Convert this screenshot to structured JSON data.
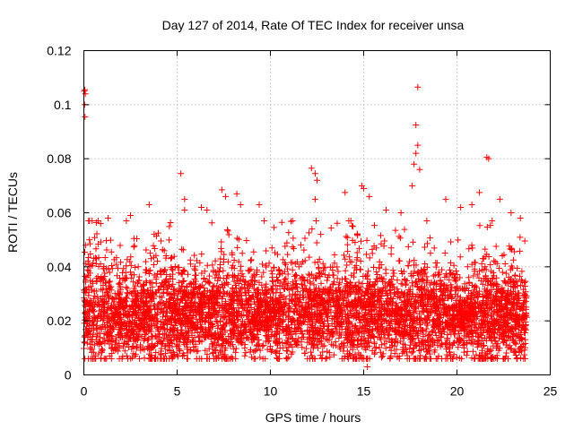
{
  "chart_data": {
    "type": "scatter",
    "title": "Day 127 of 2014, Rate Of TEC Index for receiver unsa",
    "xlabel": "GPS time / hours",
    "ylabel": "ROTI / TECUs",
    "xlim": [
      0,
      25
    ],
    "ylim": [
      0,
      0.12
    ],
    "xticks": [
      0,
      5,
      10,
      15,
      20,
      25
    ],
    "yticks": [
      0,
      0.02,
      0.04,
      0.06,
      0.08,
      0.1,
      0.12
    ],
    "xtick_labels": [
      "0",
      "5",
      "10",
      "15",
      "20",
      "25"
    ],
    "ytick_labels": [
      "0",
      "0.02",
      "0.04",
      "0.06",
      "0.08",
      "0.1",
      "0.12"
    ],
    "grid": true,
    "marker": "+",
    "color": "#ff0000",
    "points": [
      [
        0.02,
        0.105
      ],
      [
        0.05,
        0.1055
      ],
      [
        0.08,
        0.104
      ],
      [
        0.04,
        0.1
      ],
      [
        0.06,
        0.0955
      ],
      [
        0.1,
        0.048
      ],
      [
        0.3,
        0.05
      ],
      [
        0.9,
        0.056
      ],
      [
        1.3,
        0.058
      ],
      [
        2.5,
        0.059
      ],
      [
        3.5,
        0.063
      ],
      [
        5.2,
        0.0745
      ],
      [
        5.4,
        0.065
      ],
      [
        5.4,
        0.061
      ],
      [
        6.3,
        0.062
      ],
      [
        6.6,
        0.061
      ],
      [
        7.4,
        0.0685
      ],
      [
        7.6,
        0.066
      ],
      [
        8.2,
        0.067
      ],
      [
        8.4,
        0.063
      ],
      [
        9.4,
        0.063
      ],
      [
        12.2,
        0.0765
      ],
      [
        12.4,
        0.0745
      ],
      [
        12.5,
        0.072
      ],
      [
        12.4,
        0.065
      ],
      [
        12.7,
        0.052
      ],
      [
        14.0,
        0.0675
      ],
      [
        14.9,
        0.07
      ],
      [
        15.0,
        0.069
      ],
      [
        15.3,
        0.066
      ],
      [
        16.2,
        0.061
      ],
      [
        17.0,
        0.06
      ],
      [
        17.9,
        0.1065
      ],
      [
        17.8,
        0.0925
      ],
      [
        17.9,
        0.085
      ],
      [
        17.8,
        0.082
      ],
      [
        17.7,
        0.078
      ],
      [
        18.0,
        0.076
      ],
      [
        17.6,
        0.07
      ],
      [
        19.4,
        0.065
      ],
      [
        20.2,
        0.062
      ],
      [
        20.8,
        0.063
      ],
      [
        21.2,
        0.0675
      ],
      [
        21.6,
        0.0805
      ],
      [
        21.7,
        0.08
      ],
      [
        22.3,
        0.065
      ],
      [
        22.9,
        0.06
      ],
      [
        23.4,
        0.058
      ],
      [
        15.2,
        0.003
      ],
      [
        17.8,
        0.006
      ],
      [
        9.6,
        0.006
      ],
      [
        23.2,
        0.006
      ]
    ],
    "dense_band": {
      "x_range": [
        0,
        23.75
      ],
      "baseline_range": [
        0.008,
        0.045
      ],
      "typical_center": 0.022,
      "count": 5200,
      "seed": 127
    }
  }
}
